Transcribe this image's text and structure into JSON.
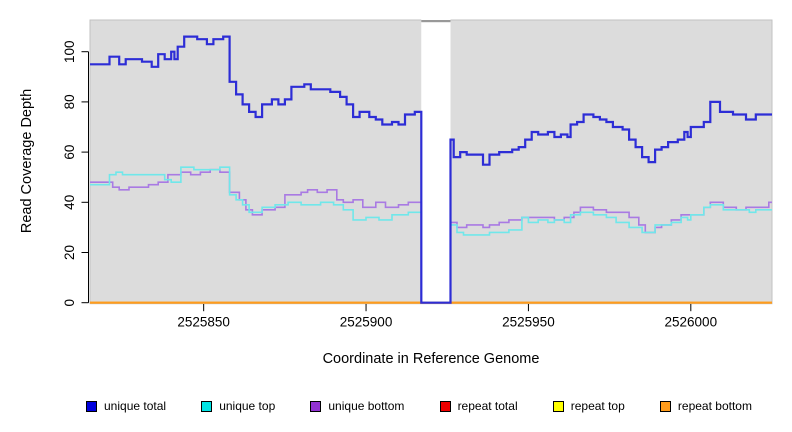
{
  "figure": {
    "background": "#ffffff",
    "plot_bg": "#dcdcdc",
    "plot_border": "#c2c2c2",
    "axis_color": "#000000"
  },
  "chart_data": {
    "type": "line",
    "subtype": "step",
    "title": "",
    "xlabel": "Coordinate in Reference Genome",
    "ylabel": "Read Coverage Depth",
    "xlim": [
      2525815,
      2526025
    ],
    "ylim": [
      0,
      113
    ],
    "xticks": [
      2525850,
      2525900,
      2525950,
      2526000
    ],
    "yticks": [
      0,
      20,
      40,
      60,
      80,
      100
    ],
    "grid": false,
    "legend_position": "bottom",
    "gap_region": {
      "start": 2525917,
      "end": 2525926,
      "fill": "#ffffff",
      "top_marker_color": "#999999"
    },
    "series": [
      {
        "name": "unique total",
        "line_color": "#2d2dd6",
        "legend_color": "#0000dd",
        "width": 2.2,
        "steps": [
          [
            2525815,
            95
          ],
          [
            2525821,
            98
          ],
          [
            2525824,
            95
          ],
          [
            2525826,
            97
          ],
          [
            2525831,
            96
          ],
          [
            2525834,
            94
          ],
          [
            2525836,
            99
          ],
          [
            2525838,
            97
          ],
          [
            2525840,
            100
          ],
          [
            2525841,
            97
          ],
          [
            2525842,
            102
          ],
          [
            2525844,
            106
          ],
          [
            2525848,
            105
          ],
          [
            2525851,
            103
          ],
          [
            2525853,
            105
          ],
          [
            2525856,
            106
          ],
          [
            2525858,
            88
          ],
          [
            2525860,
            83
          ],
          [
            2525862,
            79
          ],
          [
            2525864,
            76
          ],
          [
            2525866,
            74
          ],
          [
            2525868,
            79
          ],
          [
            2525871,
            81
          ],
          [
            2525873,
            79
          ],
          [
            2525875,
            81
          ],
          [
            2525877,
            86
          ],
          [
            2525881,
            87
          ],
          [
            2525883,
            85
          ],
          [
            2525889,
            84
          ],
          [
            2525892,
            82
          ],
          [
            2525894,
            79
          ],
          [
            2525896,
            74
          ],
          [
            2525898,
            76
          ],
          [
            2525901,
            74
          ],
          [
            2525903,
            73
          ],
          [
            2525905,
            71
          ],
          [
            2525908,
            72
          ],
          [
            2525910,
            71
          ],
          [
            2525912,
            75
          ],
          [
            2525915,
            76
          ],
          [
            2525917,
            0
          ],
          [
            2525926,
            65
          ],
          [
            2525927,
            58
          ],
          [
            2525929,
            60
          ],
          [
            2525931,
            59
          ],
          [
            2525936,
            55
          ],
          [
            2525938,
            59
          ],
          [
            2525941,
            60
          ],
          [
            2525945,
            61
          ],
          [
            2525947,
            62
          ],
          [
            2525949,
            65
          ],
          [
            2525951,
            68
          ],
          [
            2525953,
            67
          ],
          [
            2525956,
            68
          ],
          [
            2525958,
            66
          ],
          [
            2525960,
            67
          ],
          [
            2525962,
            66
          ],
          [
            2525963,
            71
          ],
          [
            2525965,
            72
          ],
          [
            2525967,
            75
          ],
          [
            2525970,
            74
          ],
          [
            2525972,
            73
          ],
          [
            2525974,
            72
          ],
          [
            2525976,
            70
          ],
          [
            2525979,
            69
          ],
          [
            2525981,
            65
          ],
          [
            2525983,
            62
          ],
          [
            2525985,
            58
          ],
          [
            2525987,
            56
          ],
          [
            2525989,
            61
          ],
          [
            2525991,
            62
          ],
          [
            2525993,
            64
          ],
          [
            2525996,
            65
          ],
          [
            2525998,
            68
          ],
          [
            2525999,
            66
          ],
          [
            2526000,
            70
          ],
          [
            2526004,
            72
          ],
          [
            2526006,
            80
          ],
          [
            2526009,
            76
          ],
          [
            2526013,
            75
          ],
          [
            2526017,
            73
          ],
          [
            2526020,
            75
          ]
        ]
      },
      {
        "name": "unique top",
        "line_color": "#70e7ea",
        "legend_color": "#00e4e4",
        "width": 1.6,
        "steps": [
          [
            2525815,
            47
          ],
          [
            2525821,
            51
          ],
          [
            2525823,
            52
          ],
          [
            2525825,
            51
          ],
          [
            2525838,
            49
          ],
          [
            2525840,
            48
          ],
          [
            2525843,
            54
          ],
          [
            2525847,
            53
          ],
          [
            2525855,
            54
          ],
          [
            2525858,
            43
          ],
          [
            2525860,
            41
          ],
          [
            2525862,
            39
          ],
          [
            2525864,
            36
          ],
          [
            2525868,
            38
          ],
          [
            2525872,
            39
          ],
          [
            2525876,
            40
          ],
          [
            2525880,
            39
          ],
          [
            2525886,
            40
          ],
          [
            2525890,
            39
          ],
          [
            2525893,
            37
          ],
          [
            2525896,
            33
          ],
          [
            2525900,
            34
          ],
          [
            2525904,
            33
          ],
          [
            2525908,
            35
          ],
          [
            2525913,
            36
          ],
          [
            2525917,
            0
          ],
          [
            2525926,
            31
          ],
          [
            2525928,
            28
          ],
          [
            2525930,
            27
          ],
          [
            2525938,
            28
          ],
          [
            2525944,
            29
          ],
          [
            2525948,
            34
          ],
          [
            2525950,
            32
          ],
          [
            2525953,
            33
          ],
          [
            2525956,
            32
          ],
          [
            2525958,
            33
          ],
          [
            2525961,
            32
          ],
          [
            2525963,
            35
          ],
          [
            2525966,
            36
          ],
          [
            2525970,
            35
          ],
          [
            2525974,
            34
          ],
          [
            2525977,
            32
          ],
          [
            2525981,
            30
          ],
          [
            2525985,
            28
          ],
          [
            2525989,
            31
          ],
          [
            2525992,
            31
          ],
          [
            2525994,
            32
          ],
          [
            2525997,
            34
          ],
          [
            2525999,
            33
          ],
          [
            2526000,
            35
          ],
          [
            2526004,
            38
          ],
          [
            2526006,
            39
          ],
          [
            2526010,
            37
          ],
          [
            2526014,
            37
          ],
          [
            2526018,
            36
          ],
          [
            2526020,
            37
          ]
        ]
      },
      {
        "name": "unique bottom",
        "line_color": "#a97ae3",
        "legend_color": "#9232d2",
        "width": 1.6,
        "steps": [
          [
            2525815,
            48
          ],
          [
            2525822,
            46
          ],
          [
            2525824,
            45
          ],
          [
            2525827,
            46
          ],
          [
            2525833,
            47
          ],
          [
            2525836,
            48
          ],
          [
            2525839,
            51
          ],
          [
            2525843,
            52
          ],
          [
            2525846,
            51
          ],
          [
            2525849,
            52
          ],
          [
            2525852,
            53
          ],
          [
            2525855,
            52
          ],
          [
            2525858,
            44
          ],
          [
            2525861,
            41
          ],
          [
            2525863,
            37
          ],
          [
            2525865,
            35
          ],
          [
            2525868,
            37
          ],
          [
            2525872,
            38
          ],
          [
            2525875,
            43
          ],
          [
            2525880,
            44
          ],
          [
            2525882,
            45
          ],
          [
            2525885,
            44
          ],
          [
            2525888,
            45
          ],
          [
            2525891,
            41
          ],
          [
            2525893,
            40
          ],
          [
            2525896,
            41
          ],
          [
            2525899,
            38
          ],
          [
            2525903,
            40
          ],
          [
            2525906,
            38
          ],
          [
            2525910,
            39
          ],
          [
            2525913,
            40
          ],
          [
            2525917,
            0
          ],
          [
            2525926,
            32
          ],
          [
            2525928,
            30
          ],
          [
            2525931,
            31
          ],
          [
            2525936,
            30
          ],
          [
            2525938,
            31
          ],
          [
            2525941,
            32
          ],
          [
            2525944,
            33
          ],
          [
            2525948,
            34
          ],
          [
            2525953,
            34
          ],
          [
            2525958,
            33
          ],
          [
            2525961,
            34
          ],
          [
            2525964,
            36
          ],
          [
            2525966,
            38
          ],
          [
            2525970,
            37
          ],
          [
            2525974,
            36
          ],
          [
            2525978,
            36
          ],
          [
            2525981,
            34
          ],
          [
            2525984,
            31
          ],
          [
            2525986,
            28
          ],
          [
            2525989,
            30
          ],
          [
            2525991,
            31
          ],
          [
            2525994,
            33
          ],
          [
            2525997,
            35
          ],
          [
            2526000,
            35
          ],
          [
            2526004,
            38
          ],
          [
            2526006,
            40
          ],
          [
            2526010,
            38
          ],
          [
            2526014,
            37
          ],
          [
            2526017,
            38
          ],
          [
            2526021,
            38
          ],
          [
            2526024,
            40
          ]
        ]
      },
      {
        "name": "repeat total",
        "line_color": "#ee0000",
        "legend_color": "#ee0000",
        "width": 1.6,
        "steps": [
          [
            2525815,
            0
          ]
        ]
      },
      {
        "name": "repeat top",
        "line_color": "#ffff00",
        "legend_color": "#ffff00",
        "width": 1.6,
        "steps": [
          [
            2525815,
            0
          ]
        ]
      },
      {
        "name": "repeat bottom",
        "line_color": "#ff9c1c",
        "legend_color": "#ff9c1c",
        "width": 2.2,
        "steps": [
          [
            2525815,
            0
          ]
        ]
      }
    ]
  }
}
